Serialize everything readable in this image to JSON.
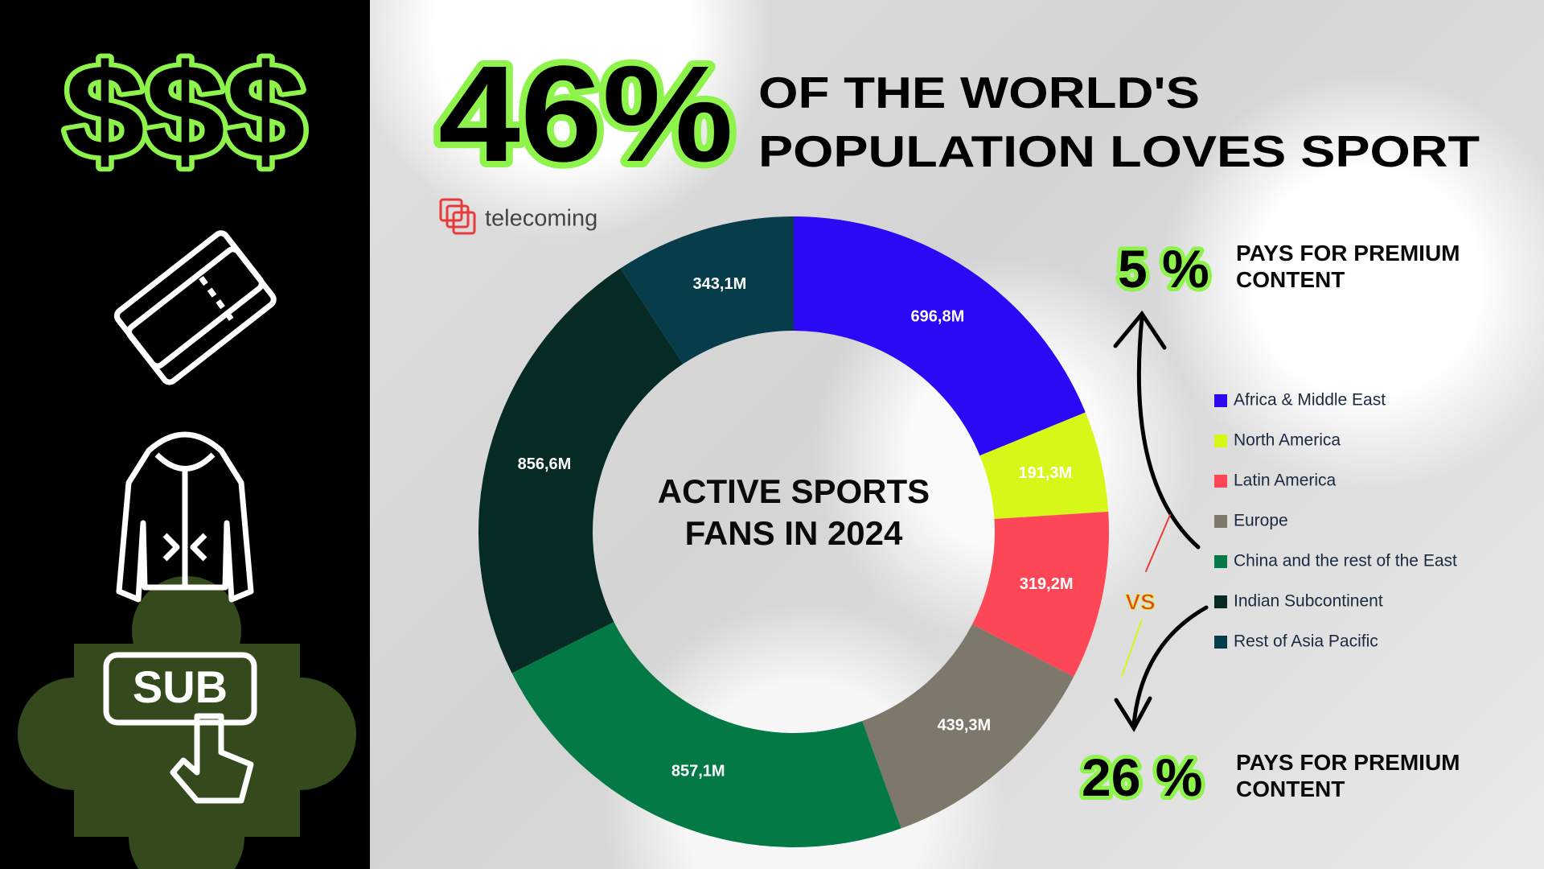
{
  "headline": {
    "percent": "46%",
    "line1": "OF THE WORLD'S",
    "line2": "POPULATION LOVES SPORT"
  },
  "icons": {
    "money": "$$$",
    "subscribe": "SUB"
  },
  "logo": "telecoming",
  "chart_data": {
    "type": "donut",
    "title": "ACTIVE SPORTS FANS IN 2024",
    "categories": [
      "Africa & Middle East",
      "North America",
      "Latin America",
      "Europe",
      "China and the rest of the East",
      "Indian Subcontinent",
      "Rest of Asia Pacific"
    ],
    "values": [
      696.8,
      191.3,
      319.2,
      439.3,
      857.1,
      856.6,
      343.1
    ],
    "value_labels": [
      "696,8M",
      "191,3M",
      "319,2M",
      "439,3M",
      "857,1M",
      "856,6M",
      "343,1M"
    ],
    "colors": [
      "#2a0af5",
      "#d7f718",
      "#fe4756",
      "#7d776c",
      "#037a45",
      "#062a26",
      "#073d4b"
    ]
  },
  "comparison": {
    "top": {
      "percent": "5 %",
      "text": "PAYS FOR PREMIUM CONTENT"
    },
    "vs": "VS",
    "bottom": {
      "percent": "26 %",
      "text": "PAYS FOR PREMIUM CONTENT"
    }
  }
}
